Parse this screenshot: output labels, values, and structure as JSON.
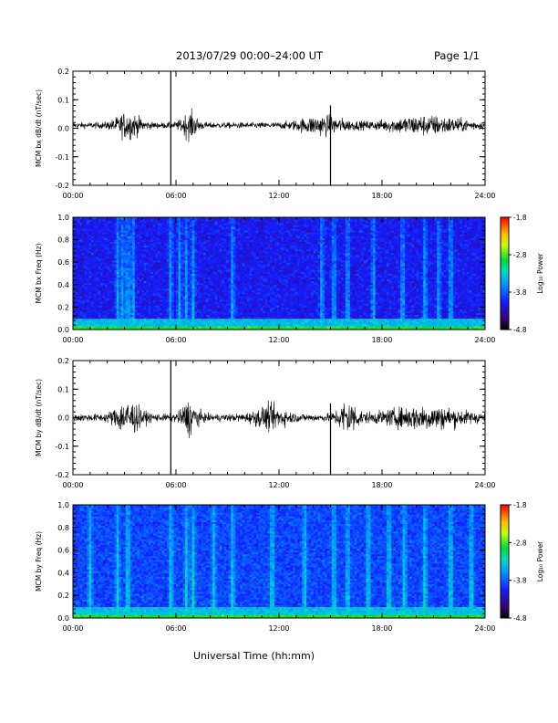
{
  "header": {
    "title": "2013/07/29  00:00–24:00 UT",
    "page": "Page 1/1"
  },
  "footer": {
    "xlabel": "Universal Time (hh:mm)"
  },
  "colorbar": {
    "label": "Log₁₀ Power",
    "ticks": [
      "-1.8",
      "-2.8",
      "-3.8",
      "-4.8"
    ],
    "range": [
      -4.8,
      -1.8
    ],
    "colors": [
      "#000000",
      "#3a007a",
      "#1a1aff",
      "#00b4ff",
      "#00e0a0",
      "#00e000",
      "#ffff00",
      "#ff8000",
      "#ff0000"
    ]
  },
  "chart_data": [
    {
      "type": "line",
      "ylabel": "MCM bx dB/dt (nT/sec)",
      "xlim": [
        0,
        24
      ],
      "ylim": [
        -0.2,
        0.2
      ],
      "xticks": [
        "00:00",
        "06:00",
        "12:00",
        "18:00",
        "24:00"
      ],
      "yticks": [
        "0.2",
        "0.1",
        "0.0",
        "-0.1",
        "-0.2"
      ],
      "baseline": 0.01,
      "noise_amp": 0.008,
      "bursts": [
        {
          "center": 3.2,
          "width": 0.8,
          "amp": 0.03
        },
        {
          "center": 6.8,
          "width": 0.5,
          "amp": 0.03
        },
        {
          "center": 14.5,
          "width": 1.5,
          "amp": 0.02
        },
        {
          "center": 20.5,
          "width": 2.5,
          "amp": 0.02
        }
      ],
      "spikes": [
        {
          "x": 5.7,
          "ymin": -0.2,
          "ymax": 0.2
        },
        {
          "x": 15.0,
          "ymin": -0.2,
          "ymax": 0.08
        }
      ]
    },
    {
      "type": "heatmap",
      "ylabel": "MCM bx Freq (Hz)",
      "xlim": [
        0,
        24
      ],
      "ylim": [
        0,
        1.0
      ],
      "xticks": [
        "00:00",
        "06:00",
        "12:00",
        "18:00",
        "24:00"
      ],
      "yticks": [
        "1.0",
        "0.8",
        "0.6",
        "0.4",
        "0.2",
        "0.0"
      ],
      "base_level": -4.1,
      "low_freq_level": -2.9,
      "active_columns": [
        2.6,
        2.9,
        3.2,
        3.5,
        5.7,
        6.2,
        6.6,
        7.0,
        9.3,
        14.5,
        15.2,
        16.0,
        17.5,
        19.2,
        20.5,
        21.3,
        22.0
      ]
    },
    {
      "type": "line",
      "ylabel": "MCM by dB/dt (nT/sec)",
      "xlim": [
        0,
        24
      ],
      "ylim": [
        -0.2,
        0.2
      ],
      "xticks": [
        "00:00",
        "06:00",
        "12:00",
        "18:00",
        "24:00"
      ],
      "yticks": [
        "0.2",
        "0.1",
        "0.0",
        "-0.1",
        "-0.2"
      ],
      "baseline": 0.0,
      "noise_amp": 0.01,
      "bursts": [
        {
          "center": 3.2,
          "width": 0.8,
          "amp": 0.04
        },
        {
          "center": 6.8,
          "width": 0.5,
          "amp": 0.04
        },
        {
          "center": 11.5,
          "width": 1.0,
          "amp": 0.025
        },
        {
          "center": 16.0,
          "width": 0.6,
          "amp": 0.04
        },
        {
          "center": 20.5,
          "width": 2.5,
          "amp": 0.025
        }
      ],
      "spikes": [
        {
          "x": 5.7,
          "ymin": -0.2,
          "ymax": 0.2
        },
        {
          "x": 15.0,
          "ymin": -0.2,
          "ymax": 0.05
        }
      ]
    },
    {
      "type": "heatmap",
      "ylabel": "MCM by Freq (Hz)",
      "xlim": [
        0,
        24
      ],
      "ylim": [
        0,
        1.0
      ],
      "xticks": [
        "00:00",
        "06:00",
        "12:00",
        "18:00",
        "24:00"
      ],
      "yticks": [
        "1.0",
        "0.8",
        "0.6",
        "0.4",
        "0.2",
        "0.0"
      ],
      "base_level": -3.9,
      "low_freq_level": -2.9,
      "active_columns": [
        1.0,
        2.6,
        3.2,
        5.7,
        6.6,
        7.0,
        8.2,
        9.3,
        11.6,
        13.5,
        15.2,
        16.0,
        17.2,
        18.4,
        19.3,
        20.5,
        22.0,
        23.2
      ]
    }
  ]
}
